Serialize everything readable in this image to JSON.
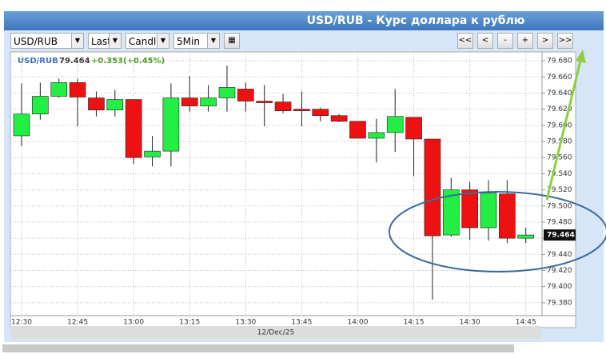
{
  "window": {
    "title": "USD/RUB - Курс доллара к рублю"
  },
  "toolbar": {
    "selects": [
      "USD/RUB",
      "Last",
      "Candle",
      "5Min"
    ],
    "buttons": [
      "<<",
      "<",
      "-",
      "+",
      ">",
      ">>"
    ]
  },
  "chart_data": {
    "type": "candlestick",
    "header": {
      "symbol": "USD/RUB",
      "change": "+0.353(+0.45%)"
    },
    "last_marker": {
      "value": 79.464,
      "label": "79.464"
    },
    "x_label": "12/Dec/25",
    "categories": [
      "12:30",
      null,
      null,
      "12:45",
      null,
      null,
      "13:00",
      null,
      null,
      "13:15",
      null,
      null,
      "13:30",
      null,
      null,
      "13:45",
      null,
      null,
      "14:00",
      null,
      null,
      "14:15",
      null,
      null,
      "14:30",
      null,
      null,
      "14:45"
    ],
    "open": [
      79.587,
      79.614,
      79.636,
      79.653,
      79.634,
      79.619,
      79.632,
      79.561,
      79.568,
      79.634,
      79.624,
      79.634,
      79.645,
      79.63,
      79.629,
      79.62,
      79.62,
      79.612,
      79.605,
      79.584,
      79.591,
      79.61,
      79.583,
      79.464,
      79.52,
      79.473,
      79.515,
      79.46
    ],
    "high": [
      79.652,
      79.653,
      79.658,
      79.658,
      79.642,
      79.644,
      79.632,
      79.587,
      79.652,
      79.661,
      79.65,
      79.674,
      79.653,
      79.65,
      79.639,
      79.642,
      79.622,
      79.614,
      79.605,
      79.608,
      79.645,
      79.61,
      79.583,
      79.535,
      79.53,
      79.532,
      79.532,
      79.473
    ],
    "low": [
      79.574,
      79.607,
      79.634,
      79.599,
      79.611,
      79.611,
      79.552,
      79.549,
      79.549,
      79.617,
      79.617,
      79.617,
      79.617,
      79.599,
      79.615,
      79.599,
      79.605,
      79.604,
      79.584,
      79.554,
      79.567,
      79.537,
      79.384,
      79.462,
      79.458,
      79.457,
      79.454,
      79.454
    ],
    "close": [
      79.614,
      79.636,
      79.653,
      79.635,
      79.619,
      79.632,
      79.56,
      79.568,
      79.634,
      79.624,
      79.634,
      79.647,
      79.63,
      79.628,
      79.618,
      79.618,
      79.612,
      79.605,
      79.584,
      79.591,
      79.611,
      79.583,
      79.463,
      79.52,
      79.473,
      79.516,
      79.46,
      79.464
    ],
    "up_color": "#22ee44",
    "down_color": "#ee1111",
    "ylim": [
      79.364,
      79.691
    ],
    "yticks": [
      {
        "value": 79.38,
        "label": "79.380"
      },
      {
        "value": 79.4,
        "label": "79.400"
      },
      {
        "value": 79.42,
        "label": "79.420"
      },
      {
        "value": 79.44,
        "label": "79.440"
      },
      {
        "value": 79.46,
        "label": "79.460"
      },
      {
        "value": 79.48,
        "label": "79.480"
      },
      {
        "value": 79.5,
        "label": "79.500"
      },
      {
        "value": 79.52,
        "label": "79.520"
      },
      {
        "value": 79.54,
        "label": "79.540"
      },
      {
        "value": 79.56,
        "label": "79.560"
      },
      {
        "value": 79.58,
        "label": "79.580"
      },
      {
        "value": 79.6,
        "label": "79.600"
      },
      {
        "value": 79.62,
        "label": "79.620"
      },
      {
        "value": 79.64,
        "label": "79.640"
      },
      {
        "value": 79.66,
        "label": "79.660"
      },
      {
        "value": 79.68,
        "label": "79.680"
      }
    ],
    "grid": true
  }
}
